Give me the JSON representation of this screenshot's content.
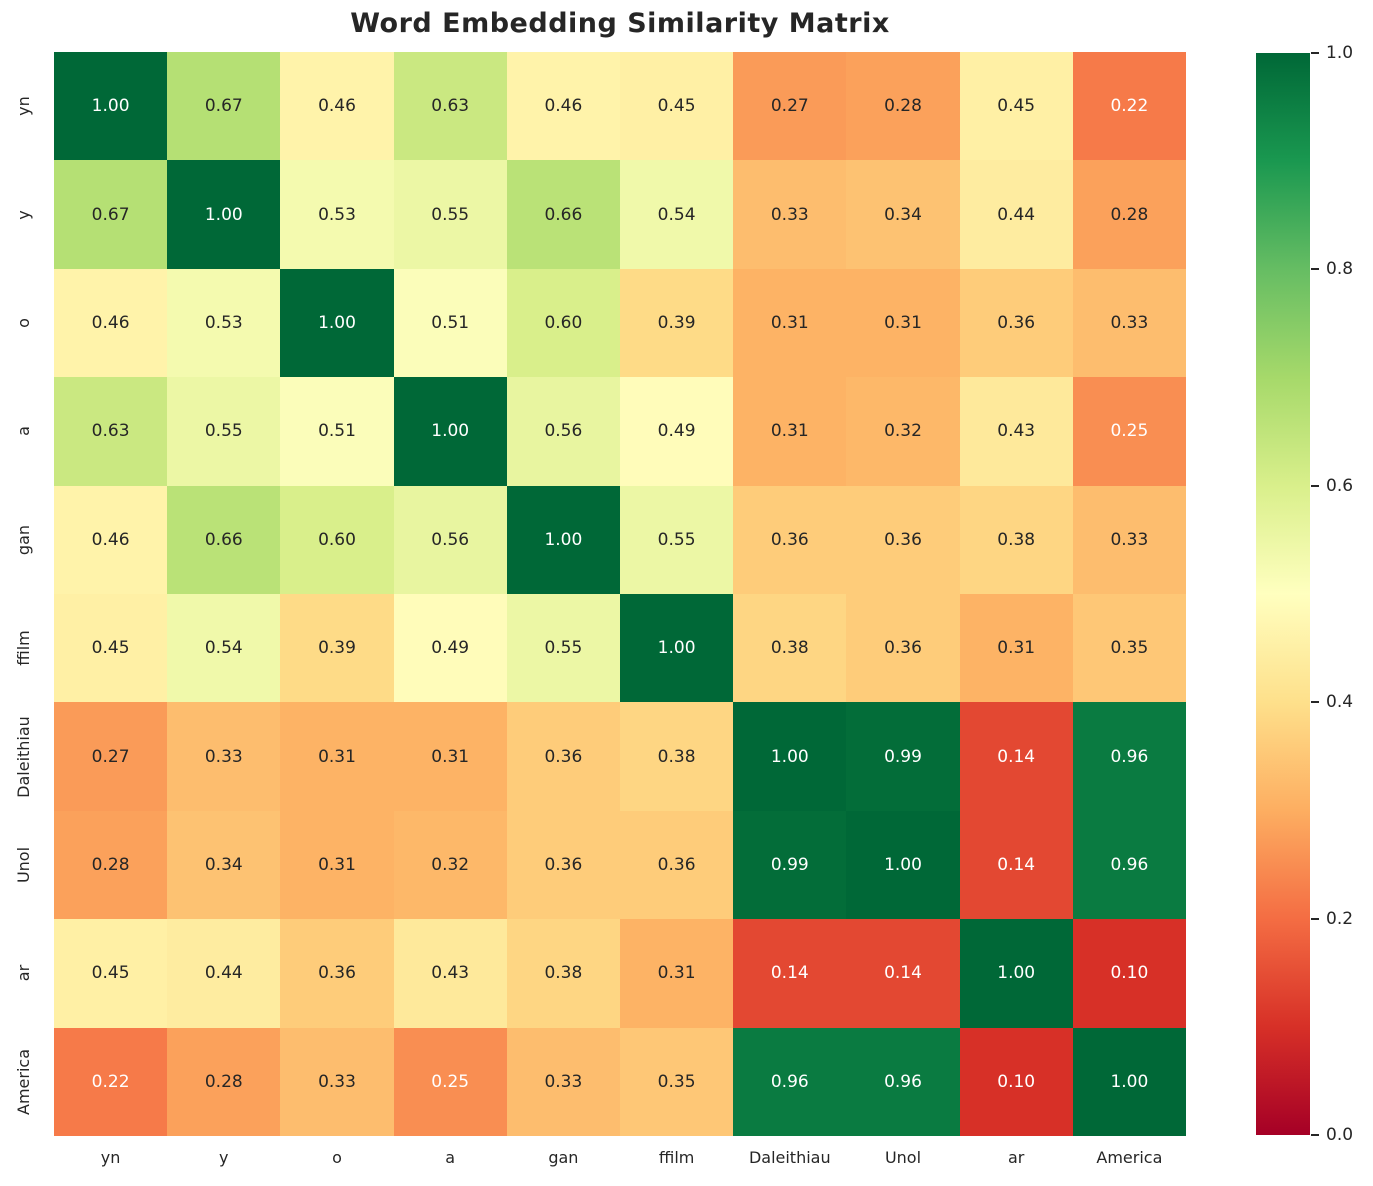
{
  "chart_data": {
    "type": "heatmap",
    "title": "Word Embedding Similarity Matrix",
    "labels": [
      "yn",
      "y",
      "o",
      "a",
      "gan",
      "ffilm",
      "Daleithiau",
      "Unol",
      "ar",
      "America"
    ],
    "matrix": [
      [
        1.0,
        0.67,
        0.46,
        0.63,
        0.46,
        0.45,
        0.27,
        0.28,
        0.45,
        0.22
      ],
      [
        0.67,
        1.0,
        0.53,
        0.55,
        0.66,
        0.54,
        0.33,
        0.34,
        0.44,
        0.28
      ],
      [
        0.46,
        0.53,
        1.0,
        0.51,
        0.6,
        0.39,
        0.31,
        0.31,
        0.36,
        0.33
      ],
      [
        0.63,
        0.55,
        0.51,
        1.0,
        0.56,
        0.49,
        0.31,
        0.32,
        0.43,
        0.25
      ],
      [
        0.46,
        0.66,
        0.6,
        0.56,
        1.0,
        0.55,
        0.36,
        0.36,
        0.38,
        0.33
      ],
      [
        0.45,
        0.54,
        0.39,
        0.49,
        0.55,
        1.0,
        0.38,
        0.36,
        0.31,
        0.35
      ],
      [
        0.27,
        0.33,
        0.31,
        0.31,
        0.36,
        0.38,
        1.0,
        0.99,
        0.14,
        0.96
      ],
      [
        0.28,
        0.34,
        0.31,
        0.32,
        0.36,
        0.36,
        0.99,
        1.0,
        0.14,
        0.96
      ],
      [
        0.45,
        0.44,
        0.36,
        0.43,
        0.38,
        0.31,
        0.14,
        0.14,
        1.0,
        0.1
      ],
      [
        0.22,
        0.28,
        0.33,
        0.25,
        0.33,
        0.35,
        0.96,
        0.96,
        0.1,
        1.0
      ]
    ],
    "value_decimals": 2,
    "colormap": "RdYlGn",
    "grid": false,
    "colorbar": {
      "min": 0.0,
      "max": 1.0,
      "tick_labels": [
        "1.0",
        "0.8",
        "0.6",
        "0.4",
        "0.2",
        "0.0"
      ],
      "tick_values": [
        1.0,
        0.8,
        0.6,
        0.4,
        0.2,
        0.0
      ]
    }
  },
  "colors": {
    "colormap_stops": [
      "#a50026",
      "#d73027",
      "#f46d43",
      "#fdae61",
      "#fee08b",
      "#ffffbf",
      "#d9ef8b",
      "#a6d96a",
      "#66bd63",
      "#1a9850",
      "#006837"
    ],
    "title_color": "#262626",
    "tick_label_color": "#262626",
    "annot_dark_text": "#262626",
    "annot_light_text": "#ffffff",
    "background": "#ffffff"
  }
}
